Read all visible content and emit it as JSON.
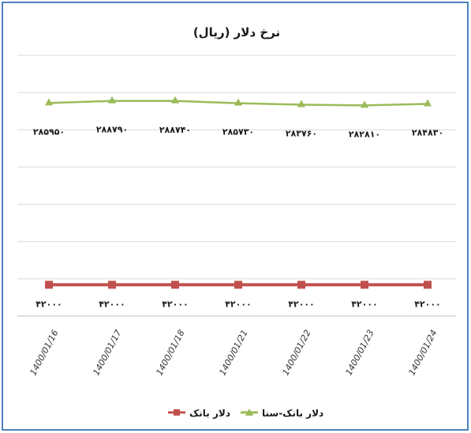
{
  "chart_data": {
    "type": "line",
    "title": "نرخ دلار (ریال)",
    "categories": [
      "1400/01/16",
      "1400/01/17",
      "1400/01/18",
      "1400/01/21",
      "1400/01/22",
      "1400/01/23",
      "1400/01/24"
    ],
    "series": [
      {
        "name": "دلار بانک-سنا",
        "values": [
          285950,
          288790,
          288740,
          285730,
          283760,
          282810,
          284830
        ],
        "labels": [
          "۲۸۵۹۵۰",
          "۲۸۸۷۹۰",
          "۲۸۸۷۴۰",
          "۲۸۵۷۳۰",
          "۲۸۳۷۶۰",
          "۲۸۲۸۱۰",
          "۲۸۴۸۳۰"
        ],
        "color": "#9bbb59",
        "marker": "triangle"
      },
      {
        "name": "دلار بانک",
        "values": [
          42000,
          42000,
          42000,
          42000,
          42000,
          42000,
          42000
        ],
        "labels": [
          "۴۲۰۰۰",
          "۴۲۰۰۰",
          "۴۲۰۰۰",
          "۴۲۰۰۰",
          "۴۲۰۰۰",
          "۴۲۰۰۰",
          "۴۲۰۰۰"
        ],
        "color": "#c0504d",
        "marker": "square"
      }
    ],
    "ylim": [
      0,
      350000
    ],
    "y_axis_visible": false,
    "grid": true,
    "legend": "bottom",
    "border_color": "#4f81bd"
  }
}
